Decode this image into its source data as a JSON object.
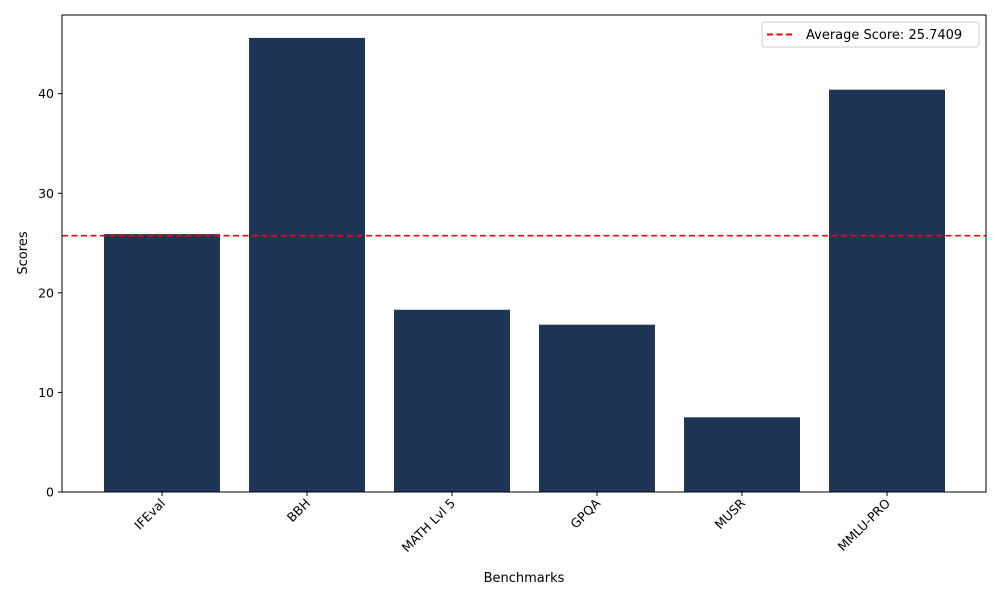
{
  "chart_data": {
    "type": "bar",
    "categories": [
      "IFEval",
      "BBH",
      "MATH Lvl 5",
      "GPQA",
      "MUSR",
      "MMLU-PRO"
    ],
    "values": [
      25.9,
      45.6,
      18.3,
      16.8,
      7.5,
      40.4
    ],
    "bar_color": "#1f3556",
    "xlabel": "Benchmarks",
    "ylabel": "Scores",
    "ylim": [
      0,
      47.9
    ],
    "yticks": [
      0,
      10,
      20,
      30,
      40
    ],
    "grid": false,
    "x_tick_rotation": 45,
    "average": {
      "value": 25.7409,
      "label": "Average Score: 25.7409",
      "color": "#ff0000",
      "style": "dashed"
    },
    "legend": {
      "placement": "top-right"
    }
  }
}
